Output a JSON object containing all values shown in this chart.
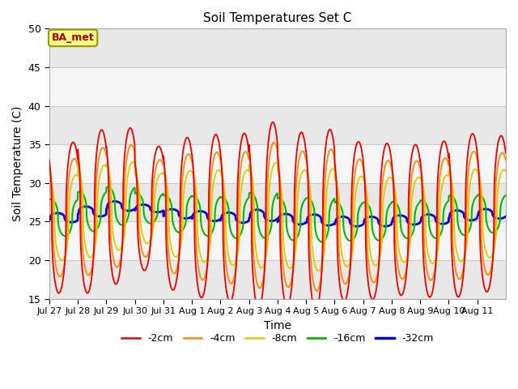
{
  "title": "Soil Temperatures Set C",
  "xlabel": "Time",
  "ylabel": "Soil Temperature (C)",
  "ylim": [
    15,
    50
  ],
  "yticks": [
    15,
    20,
    25,
    30,
    35,
    40,
    45,
    50
  ],
  "annotation_text": "BA_met",
  "annotation_color": "#aa0000",
  "annotation_bg": "#ffff88",
  "annotation_border": "#999900",
  "legend_entries": [
    "-2cm",
    "-4cm",
    "-8cm",
    "-16cm",
    "-32cm"
  ],
  "line_colors": [
    "#ee0000",
    "#ff8800",
    "#ddcc00",
    "#00bb00",
    "#0000dd"
  ],
  "line_widths": [
    1.3,
    1.3,
    1.3,
    1.5,
    2.0
  ],
  "xtick_labels": [
    "Jul 27",
    "Jul 28",
    "Jul 29",
    "Jul 30",
    "Jul 31",
    "Aug 1",
    "Aug 2",
    "Aug 3",
    "Aug 4",
    "Aug 5",
    "Aug 6",
    "Aug 7",
    "Aug 8",
    "Aug 9",
    "Aug 10",
    "Aug 11"
  ],
  "n_days": 16,
  "pts_per_day": 144,
  "mean_temp": 25.5,
  "amplitudes": [
    11.5,
    9.0,
    6.5,
    2.8,
    0.7
  ],
  "phase_lags_days": [
    0.0,
    0.04,
    0.1,
    0.22,
    0.45
  ],
  "peak_hour": 14.0,
  "peak_sharpness": 2.5,
  "daily_amplitude_scale": [
    0.85,
    0.92,
    0.88,
    0.7,
    0.86,
    0.92,
    0.95,
    1.05,
    0.98,
    1.02,
    0.9,
    0.88,
    0.85,
    0.88,
    0.92,
    0.88
  ],
  "daily_mean_offset": [
    0.0,
    0.8,
    1.5,
    1.2,
    0.5,
    0.2,
    0.0,
    0.3,
    -0.2,
    -0.3,
    -0.5,
    -0.5,
    -0.3,
    -0.2,
    0.3,
    0.5
  ]
}
